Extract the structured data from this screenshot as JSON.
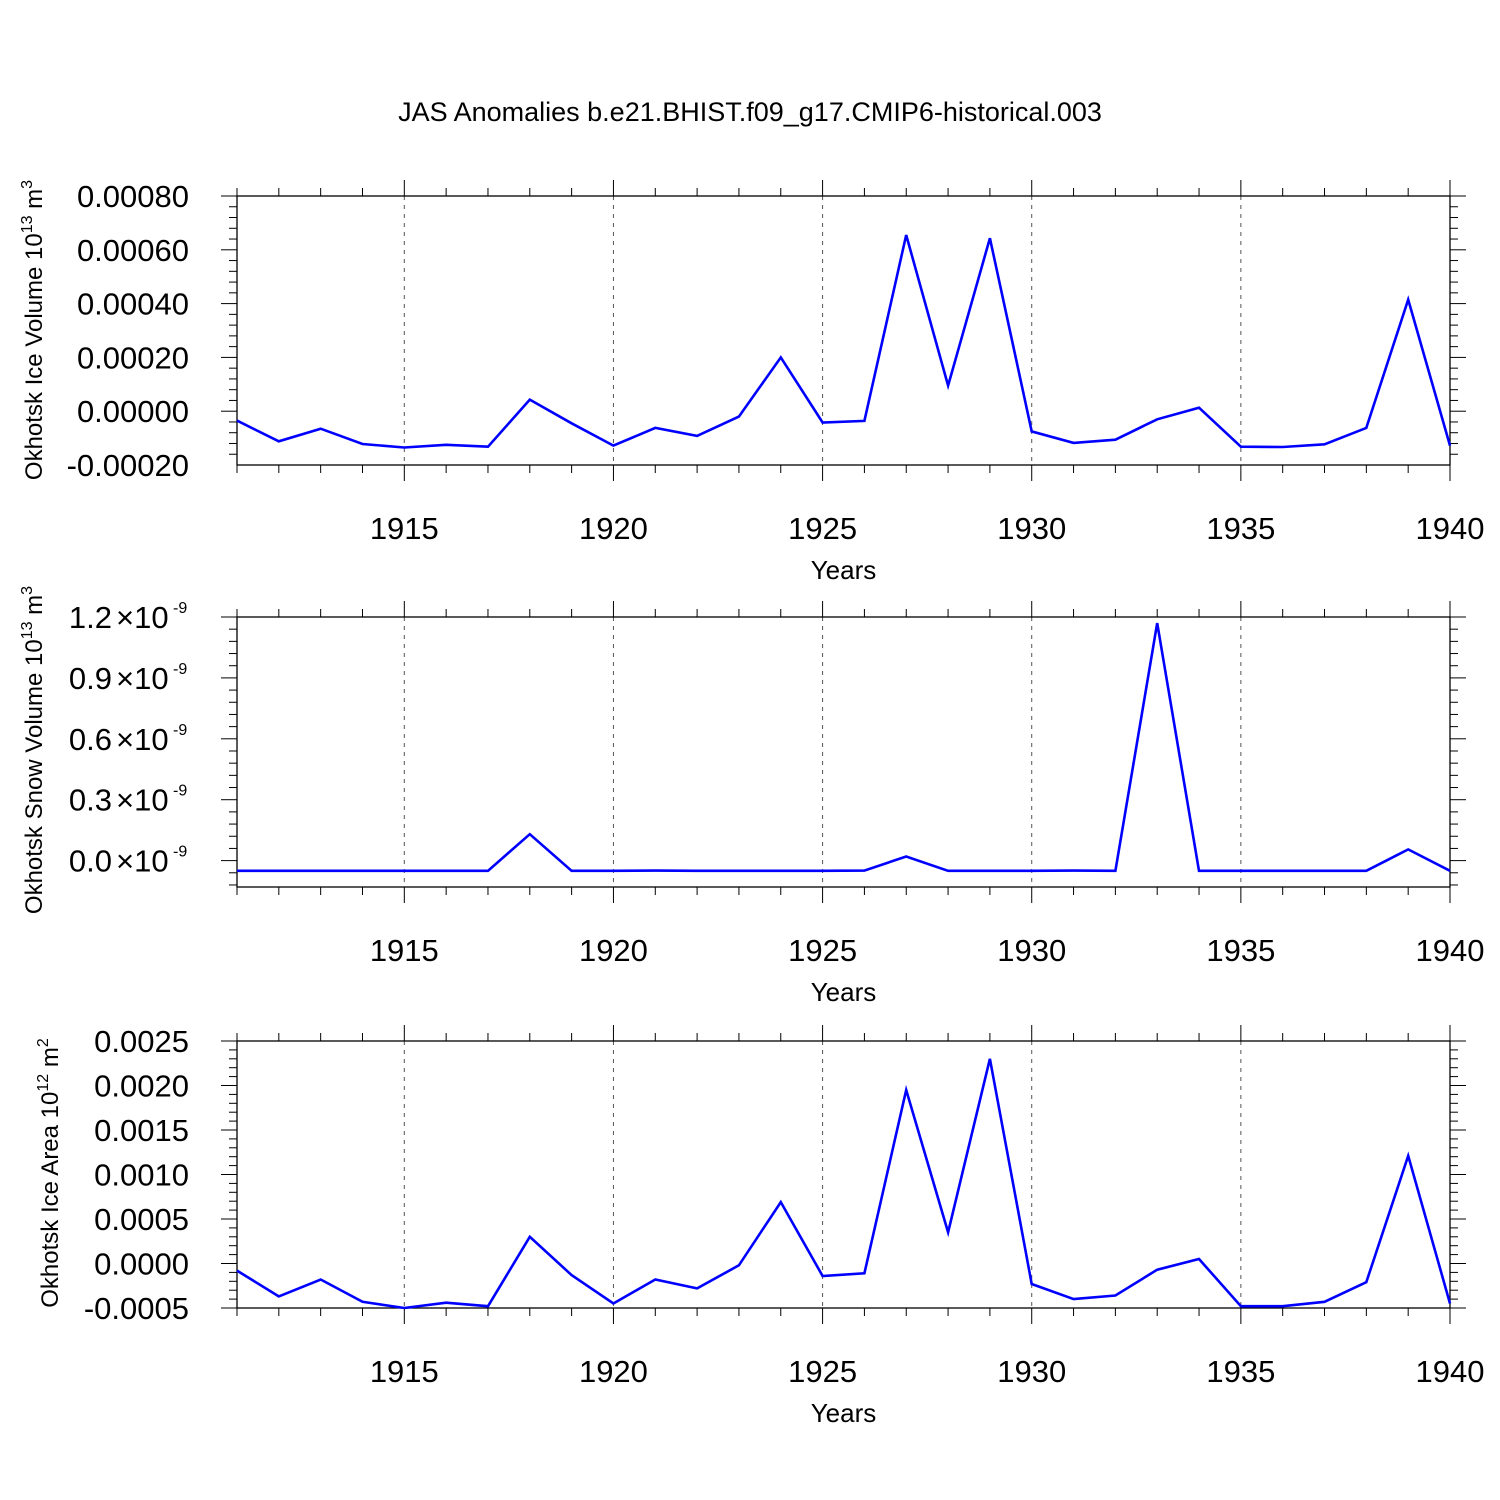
{
  "title": "JAS Anomalies b.e21.BHIST.f09_g17.CMIP6-historical.003",
  "chart_data": [
    {
      "type": "line",
      "xlabel": "Years",
      "ylabel": "Okhotsk Ice Volume 10",
      "ylabel_sup": "13",
      "ylabel_unit": " m",
      "ylabel_unit_sup": "3",
      "xlim": [
        1911,
        1940
      ],
      "ylim": [
        -0.0002,
        0.0008
      ],
      "xticks": [
        1915,
        1920,
        1925,
        1930,
        1935,
        1940
      ],
      "yticks": [
        -0.0002,
        0,
        0.0002,
        0.0004,
        0.0006,
        0.0008
      ],
      "ytick_labels": [
        "-0.00020",
        "0.00000",
        "0.00020",
        "0.00040",
        "0.00060",
        "0.00080"
      ],
      "ytick_sci": false,
      "grid": "vertical dashed at major x ticks",
      "line_color": "#0000ff",
      "x": [
        1911,
        1912,
        1913,
        1914,
        1915,
        1916,
        1917,
        1918,
        1919,
        1920,
        1921,
        1922,
        1923,
        1924,
        1925,
        1926,
        1927,
        1928,
        1929,
        1930,
        1931,
        1932,
        1933,
        1934,
        1935,
        1936,
        1937,
        1938,
        1939,
        1940
      ],
      "values": [
        -3.5e-05,
        -0.000112,
        -6.5e-05,
        -0.000122,
        -0.000135,
        -0.000125,
        -0.000132,
        4.3e-05,
        -4.5e-05,
        -0.000128,
        -6.2e-05,
        -9.2e-05,
        -2e-05,
        0.0002,
        -4.2e-05,
        -3.6e-05,
        0.000655,
        9.5e-05,
        0.000643,
        -7.5e-05,
        -0.000118,
        -0.000106,
        -3e-05,
        1.3e-05,
        -0.000132,
        -0.000133,
        -0.000123,
        -6.2e-05,
        0.000415,
        -0.000128
      ]
    },
    {
      "type": "line",
      "xlabel": "Years",
      "ylabel": "Okhotsk Snow Volume 10",
      "ylabel_sup": "13",
      "ylabel_unit": " m",
      "ylabel_unit_sup": "3",
      "xlim": [
        1911,
        1940
      ],
      "ylim": [
        -1.3e-10,
        1.2e-09
      ],
      "xticks": [
        1915,
        1920,
        1925,
        1930,
        1935,
        1940
      ],
      "yticks": [
        0,
        3e-10,
        6e-10,
        9e-10,
        1.2e-09
      ],
      "ytick_labels": [
        "0.0",
        "0.3",
        "0.6",
        "0.9",
        "1.2"
      ],
      "ytick_sci": true,
      "ytick_sci_base": "10",
      "ytick_sci_exp": "-9",
      "grid": "vertical dashed at major x ticks",
      "line_color": "#0000ff",
      "x": [
        1911,
        1912,
        1913,
        1914,
        1915,
        1916,
        1917,
        1918,
        1919,
        1920,
        1921,
        1922,
        1923,
        1924,
        1925,
        1926,
        1927,
        1928,
        1929,
        1930,
        1931,
        1932,
        1933,
        1934,
        1935,
        1936,
        1937,
        1938,
        1939,
        1940
      ],
      "values": [
        -5e-11,
        -5e-11,
        -5e-11,
        -5e-11,
        -5e-11,
        -5e-11,
        -5e-11,
        1.3e-10,
        -5e-11,
        -5e-11,
        -4.9e-11,
        -5e-11,
        -5e-11,
        -5e-11,
        -5e-11,
        -4.9e-11,
        2e-11,
        -5e-11,
        -5e-11,
        -5e-11,
        -4.9e-11,
        -5e-11,
        1.17e-09,
        -5e-11,
        -5e-11,
        -5e-11,
        -5e-11,
        -5e-11,
        5.5e-11,
        -5e-11
      ]
    },
    {
      "type": "line",
      "xlabel": "Years",
      "ylabel": "Okhotsk Ice Area 10",
      "ylabel_sup": "12",
      "ylabel_unit": " m",
      "ylabel_unit_sup": "2",
      "xlim": [
        1911,
        1940
      ],
      "ylim": [
        -0.0005,
        0.0025
      ],
      "xticks": [
        1915,
        1920,
        1925,
        1930,
        1935,
        1940
      ],
      "yticks": [
        -0.0005,
        0,
        0.0005,
        0.001,
        0.0015,
        0.002,
        0.0025
      ],
      "ytick_labels": [
        "-0.0005",
        "0.0000",
        "0.0005",
        "0.0010",
        "0.0015",
        "0.0020",
        "0.0025"
      ],
      "ytick_sci": false,
      "grid": "vertical dashed at major x ticks",
      "line_color": "#0000ff",
      "x": [
        1911,
        1912,
        1913,
        1914,
        1915,
        1916,
        1917,
        1918,
        1919,
        1920,
        1921,
        1922,
        1923,
        1924,
        1925,
        1926,
        1927,
        1928,
        1929,
        1930,
        1931,
        1932,
        1933,
        1934,
        1935,
        1936,
        1937,
        1938,
        1939,
        1940
      ],
      "values": [
        -8e-05,
        -0.00037,
        -0.00018,
        -0.00043,
        -0.0005,
        -0.00044,
        -0.00048,
        0.0003,
        -0.00013,
        -0.00045,
        -0.00018,
        -0.00028,
        -2e-05,
        0.00069,
        -0.00014,
        -0.00011,
        0.00195,
        0.00035,
        0.0023,
        -0.00023,
        -0.0004,
        -0.00036,
        -7e-05,
        5e-05,
        -0.00048,
        -0.00048,
        -0.00043,
        -0.00021,
        0.00121,
        -0.00045
      ]
    }
  ]
}
